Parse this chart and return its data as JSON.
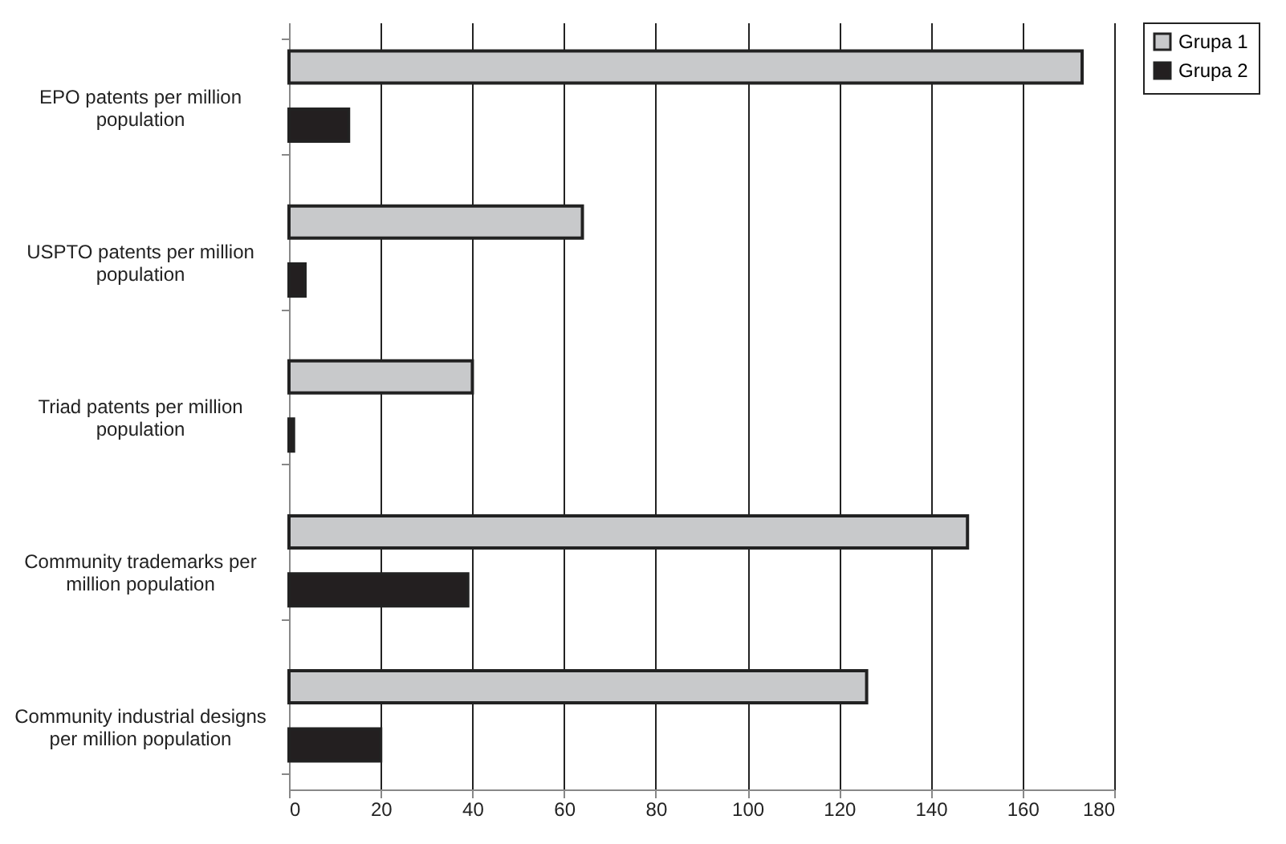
{
  "chart_data": {
    "type": "bar",
    "orientation": "horizontal",
    "categories": [
      "EPO patents per million population",
      "USPTO patents per million population",
      "Triad patents per million population",
      "Community trademarks per million population",
      "Community industrial designs per million population"
    ],
    "series": [
      {
        "name": "Grupa 1",
        "color": "#c8c9cb",
        "values": [
          173,
          64,
          40,
          148,
          126
        ]
      },
      {
        "name": "Grupa 2",
        "color": "#231f20",
        "values": [
          13,
          3.5,
          1,
          39,
          20
        ]
      }
    ],
    "xlim": [
      0,
      180
    ],
    "xticks": [
      0,
      20,
      40,
      60,
      80,
      100,
      120,
      140,
      160,
      180
    ],
    "grid": "x",
    "legend": "right"
  }
}
